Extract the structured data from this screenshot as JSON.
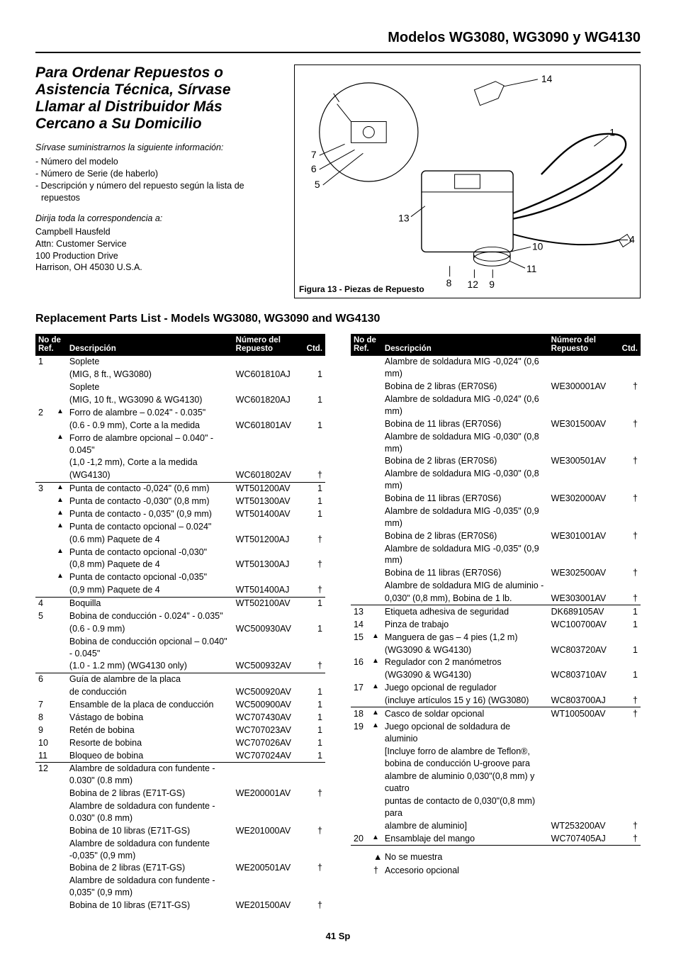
{
  "header": {
    "title": "Modelos WG3080, WG3090 y WG4130"
  },
  "ordering": {
    "heading": "Para Ordenar Repuestos o Asistencia Técnica, Sírvase Llamar al Distribuidor Más Cercano a Su Domicilio",
    "prompt": "Sírvase suministrarnos la siguiente información:",
    "bullets": [
      "Número del modelo",
      "Número de Serie (de haberlo)",
      "Descripción y número del repuesto según la lista de repuestos"
    ],
    "address_intro": "Dirija toda la correspondencia a:",
    "address": [
      "Campbell Hausfeld",
      "Attn: Customer Service",
      "100 Production Drive",
      "Harrison, OH 45030  U.S.A."
    ]
  },
  "figure": {
    "caption": "Figura 13 - Piezas de Repuesto",
    "callouts": [
      "1",
      "4",
      "5",
      "6",
      "7",
      "8",
      "9",
      "10",
      "11",
      "12",
      "13",
      "14"
    ]
  },
  "section_title": "Replacement Parts List - Models WG3080, WG3090 and WG4130",
  "table_headers": {
    "ref": "No de\nRef.",
    "desc": "Descripción",
    "part": "Número del\nRepuesto",
    "qty": "Ctd."
  },
  "rows_left": [
    {
      "ref": "1",
      "tri": "",
      "desc": "Soplete",
      "part": "",
      "qty": ""
    },
    {
      "ref": "",
      "tri": "",
      "desc": "(MIG, 8 ft., WG3080)",
      "part": "WC601810AJ",
      "qty": "1"
    },
    {
      "ref": "",
      "tri": "",
      "desc": "Soplete",
      "part": "",
      "qty": ""
    },
    {
      "ref": "",
      "tri": "",
      "desc": "(MIG, 10 ft., WG3090 & WG4130)",
      "part": "WC601820AJ",
      "qty": "1"
    },
    {
      "ref": "2",
      "tri": "▲",
      "desc": "Forro de alambre – 0.024\" - 0.035\"",
      "part": "",
      "qty": ""
    },
    {
      "ref": "",
      "tri": "",
      "desc": "(0.6 - 0.9 mm), Corte a la medida",
      "part": "WC601801AV",
      "qty": "1"
    },
    {
      "ref": "",
      "tri": "▲",
      "desc": "Forro de alambre opcional – 0.040\" - 0.045\"",
      "part": "",
      "qty": ""
    },
    {
      "ref": "",
      "tri": "",
      "desc": "(1,0 -1,2 mm), Corte a la medida",
      "part": "",
      "qty": ""
    },
    {
      "ref": "",
      "tri": "",
      "desc": "(WG4130)",
      "part": "WC601802AV",
      "qty": "†",
      "rule": true
    },
    {
      "ref": "3",
      "tri": "▲",
      "desc": "Punta de contacto -0,024\" (0,6 mm)",
      "part": "WT501200AV",
      "qty": "1"
    },
    {
      "ref": "",
      "tri": "▲",
      "desc": "Punta de contacto -0,030\" (0,8 mm)",
      "part": "WT501300AV",
      "qty": "1"
    },
    {
      "ref": "",
      "tri": "▲",
      "desc": "Punta de contacto - 0,035\" (0,9 mm)",
      "part": "WT501400AV",
      "qty": "1"
    },
    {
      "ref": "",
      "tri": "▲",
      "desc": "Punta de contacto opcional – 0.024\"",
      "part": "",
      "qty": ""
    },
    {
      "ref": "",
      "tri": "",
      "desc": "(0.6 mm) Paquete de 4",
      "part": "WT501200AJ",
      "qty": "†"
    },
    {
      "ref": "",
      "tri": "▲",
      "desc": "Punta de contacto opcional -0,030\"",
      "part": "",
      "qty": ""
    },
    {
      "ref": "",
      "tri": "",
      "desc": "(0,8 mm) Paquete de 4",
      "part": "WT501300AJ",
      "qty": "†"
    },
    {
      "ref": "",
      "tri": "▲",
      "desc": "Punta de contacto opcional -0,035\"",
      "part": "",
      "qty": ""
    },
    {
      "ref": "",
      "tri": "",
      "desc": "(0,9 mm) Paquete de 4",
      "part": "WT501400AJ",
      "qty": "†",
      "rule": true
    },
    {
      "ref": "4",
      "tri": "",
      "desc": "Boquilla",
      "part": "WT502100AV",
      "qty": "1"
    },
    {
      "ref": "5",
      "tri": "",
      "desc": "Bobina de conducción - 0.024\" - 0.035\"",
      "part": "",
      "qty": ""
    },
    {
      "ref": "",
      "tri": "",
      "desc": "(0.6 - 0.9 mm)",
      "part": "WC500930AV",
      "qty": "1"
    },
    {
      "ref": "",
      "tri": "",
      "desc": "Bobina de conducción opcional – 0.040\" - 0.045\"",
      "part": "",
      "qty": ""
    },
    {
      "ref": "",
      "tri": "",
      "desc": "(1.0 - 1.2 mm) (WG4130 only)",
      "part": "WC500932AV",
      "qty": "†",
      "rule": true
    },
    {
      "ref": "6",
      "tri": "",
      "desc": "Guía de alambre de la placa",
      "part": "",
      "qty": ""
    },
    {
      "ref": "",
      "tri": "",
      "desc": "de conducción",
      "part": "WC500920AV",
      "qty": "1"
    },
    {
      "ref": "7",
      "tri": "",
      "desc": "Ensamble de la placa de conducción",
      "part": "WC500900AV",
      "qty": "1"
    },
    {
      "ref": "8",
      "tri": "",
      "desc": "Vástago de bobina",
      "part": "WC707430AV",
      "qty": "1"
    },
    {
      "ref": "9",
      "tri": "",
      "desc": "Retén de bobina",
      "part": "WC707023AV",
      "qty": "1"
    },
    {
      "ref": "10",
      "tri": "",
      "desc": "Resorte de bobina",
      "part": "WC707026AV",
      "qty": "1"
    },
    {
      "ref": "11",
      "tri": "",
      "desc": "Bloqueo de bobina",
      "part": "WC707024AV",
      "qty": "1",
      "rule": true
    },
    {
      "ref": "12",
      "tri": "",
      "desc": "Alambre de soldadura con fundente - 0.030\" (0.8 mm)",
      "part": "",
      "qty": ""
    },
    {
      "ref": "",
      "tri": "",
      "desc": "Bobina de 2 libras (E71T-GS)",
      "part": "WE200001AV",
      "qty": "†"
    },
    {
      "ref": "",
      "tri": "",
      "desc": "Alambre de soldadura con fundente - 0.030\" (0.8 mm)",
      "part": "",
      "qty": ""
    },
    {
      "ref": "",
      "tri": "",
      "desc": "Bobina de 10 libras (E71T-GS)",
      "part": "WE201000AV",
      "qty": "†"
    },
    {
      "ref": "",
      "tri": "",
      "desc": "Alambre de soldadura con fundente -0,035\" (0,9 mm)",
      "part": "",
      "qty": ""
    },
    {
      "ref": "",
      "tri": "",
      "desc": "Bobina de 2 libras (E71T-GS)",
      "part": "WE200501AV",
      "qty": "†"
    },
    {
      "ref": "",
      "tri": "",
      "desc": "Alambre de soldadura con fundente - 0,035\" (0,9 mm)",
      "part": "",
      "qty": ""
    },
    {
      "ref": "",
      "tri": "",
      "desc": "Bobina de 10 libras (E71T-GS)",
      "part": "WE201500AV",
      "qty": "†"
    }
  ],
  "rows_right": [
    {
      "ref": "",
      "tri": "",
      "desc": "Alambre de soldadura MIG -0,024\" (0,6 mm)",
      "part": "",
      "qty": ""
    },
    {
      "ref": "",
      "tri": "",
      "desc": "Bobina de 2 libras (ER70S6)",
      "part": "WE300001AV",
      "qty": "†"
    },
    {
      "ref": "",
      "tri": "",
      "desc": "Alambre de soldadura MIG -0,024\" (0,6 mm)",
      "part": "",
      "qty": ""
    },
    {
      "ref": "",
      "tri": "",
      "desc": "Bobina de 11 libras (ER70S6)",
      "part": "WE301500AV",
      "qty": "†"
    },
    {
      "ref": "",
      "tri": "",
      "desc": "Alambre de soldadura MIG -0,030\" (0,8 mm)",
      "part": "",
      "qty": ""
    },
    {
      "ref": "",
      "tri": "",
      "desc": "Bobina de 2 libras (ER70S6)",
      "part": "WE300501AV",
      "qty": "†"
    },
    {
      "ref": "",
      "tri": "",
      "desc": "Alambre de soldadura MIG -0,030\" (0,8 mm)",
      "part": "",
      "qty": ""
    },
    {
      "ref": "",
      "tri": "",
      "desc": "Bobina de 11 libras (ER70S6)",
      "part": "WE302000AV",
      "qty": "†"
    },
    {
      "ref": "",
      "tri": "",
      "desc": "Alambre de soldadura MIG -0,035\" (0,9 mm)",
      "part": "",
      "qty": ""
    },
    {
      "ref": "",
      "tri": "",
      "desc": "Bobina de 2 libras (ER70S6)",
      "part": "WE301001AV",
      "qty": "†"
    },
    {
      "ref": "",
      "tri": "",
      "desc": "Alambre de soldadura MIG -0,035\" (0,9 mm)",
      "part": "",
      "qty": ""
    },
    {
      "ref": "",
      "tri": "",
      "desc": "Bobina de 11 libras (ER70S6)",
      "part": "WE302500AV",
      "qty": "†"
    },
    {
      "ref": "",
      "tri": "",
      "desc": "Alambre de soldadura MIG de aluminio -",
      "part": "",
      "qty": ""
    },
    {
      "ref": "",
      "tri": "",
      "desc": "0,030\" (0,8 mm), Bobina de 1 lb.",
      "part": "WE303001AV",
      "qty": "†",
      "rule": true
    },
    {
      "ref": "13",
      "tri": "",
      "desc": "Etiqueta adhesiva de seguridad",
      "part": "DK689105AV",
      "qty": "1"
    },
    {
      "ref": "14",
      "tri": "",
      "desc": "Pinza de trabajo",
      "part": "WC100700AV",
      "qty": "1"
    },
    {
      "ref": "15",
      "tri": "▲",
      "desc": "Manguera de gas – 4 pies (1,2 m)",
      "part": "",
      "qty": ""
    },
    {
      "ref": "",
      "tri": "",
      "desc": "(WG3090 & WG4130)",
      "part": "WC803720AV",
      "qty": "1"
    },
    {
      "ref": "16",
      "tri": "▲",
      "desc": "Regulador con 2 manómetros",
      "part": "",
      "qty": ""
    },
    {
      "ref": "",
      "tri": "",
      "desc": "(WG3090 & WG4130)",
      "part": "WC803710AV",
      "qty": "1"
    },
    {
      "ref": "17",
      "tri": "▲",
      "desc": "Juego opcional de regulador",
      "part": "",
      "qty": ""
    },
    {
      "ref": "",
      "tri": "",
      "desc": "(incluye artículos 15 y 16) (WG3080)",
      "part": "WC803700AJ",
      "qty": "†",
      "rule": true
    },
    {
      "ref": "18",
      "tri": "▲",
      "desc": "Casco de soldar opcional",
      "part": "WT100500AV",
      "qty": "†"
    },
    {
      "ref": "19",
      "tri": "▲",
      "desc": "Juego opcional de soldadura de aluminio",
      "part": "",
      "qty": ""
    },
    {
      "ref": "",
      "tri": "",
      "desc": "[Incluye forro de alambre de Teflon®,",
      "part": "",
      "qty": ""
    },
    {
      "ref": "",
      "tri": "",
      "desc": "bobina de conducción U-groove para",
      "part": "",
      "qty": ""
    },
    {
      "ref": "",
      "tri": "",
      "desc": "alambre de aluminio 0,030\"(0,8 mm) y cuatro",
      "part": "",
      "qty": ""
    },
    {
      "ref": "",
      "tri": "",
      "desc": "puntas de contacto de 0,030\"(0,8 mm) para",
      "part": "",
      "qty": ""
    },
    {
      "ref": "",
      "tri": "",
      "desc": "alambre de aluminio]",
      "part": "WT253200AV",
      "qty": "†"
    },
    {
      "ref": "20",
      "tri": "▲",
      "desc": "Ensamblaje del mango",
      "part": "WC707405AJ",
      "qty": "†",
      "rule": true
    }
  ],
  "legend": {
    "triangle": "No se muestra",
    "dagger": "Accesorio opcional"
  },
  "footer": "41 Sp"
}
